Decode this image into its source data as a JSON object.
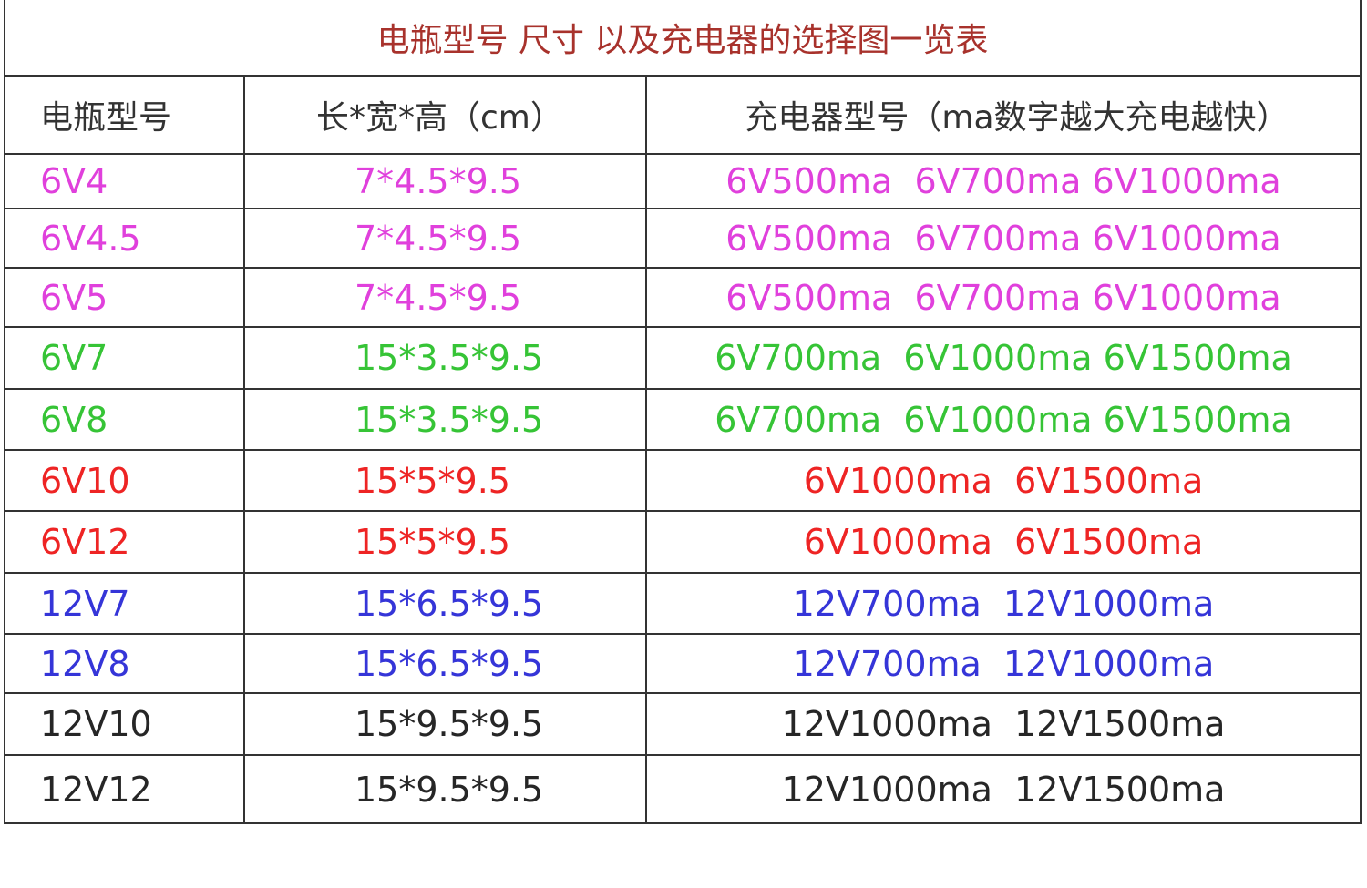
{
  "table": {
    "title": "电瓶型号 尺寸 以及充电器的选择图一览表",
    "title_color": "#a8322c",
    "headers": [
      "电瓶型号",
      "长*宽*高（cm）",
      "充电器型号（ma数字越大充电越快）"
    ],
    "rows": [
      [
        "6V4",
        "7*4.5*9.5",
        "6V500ma  6V700ma 6V1000ma"
      ],
      [
        "6V4.5",
        "7*4.5*9.5",
        "6V500ma  6V700ma 6V1000ma"
      ],
      [
        "6V5",
        "7*4.5*9.5",
        "6V500ma  6V700ma 6V1000ma"
      ],
      [
        "6V7",
        "15*3.5*9.5",
        "6V700ma  6V1000ma 6V1500ma"
      ],
      [
        "6V8",
        "15*3.5*9.5",
        "6V700ma  6V1000ma 6V1500ma"
      ],
      [
        "6V10",
        "15*5*9.5",
        "6V1000ma  6V1500ma"
      ],
      [
        "6V12",
        "15*5*9.5",
        "6V1000ma  6V1500ma"
      ],
      [
        "12V7",
        "15*6.5*9.5",
        "12V700ma  12V1000ma"
      ],
      [
        "12V8",
        "15*6.5*9.5",
        "12V700ma  12V1000ma"
      ],
      [
        "12V10",
        "15*9.5*9.5",
        "12V1000ma  12V1500ma"
      ],
      [
        "12V12",
        "15*9.5*9.5",
        "12V1000ma  12V1500ma"
      ]
    ],
    "row_colors": [
      "#e040dc",
      "#e040dc",
      "#e040dc",
      "#36c436",
      "#36c436",
      "#ee2424",
      "#ee2424",
      "#3535d8",
      "#3535d8",
      "#262626",
      "#262626"
    ]
  }
}
